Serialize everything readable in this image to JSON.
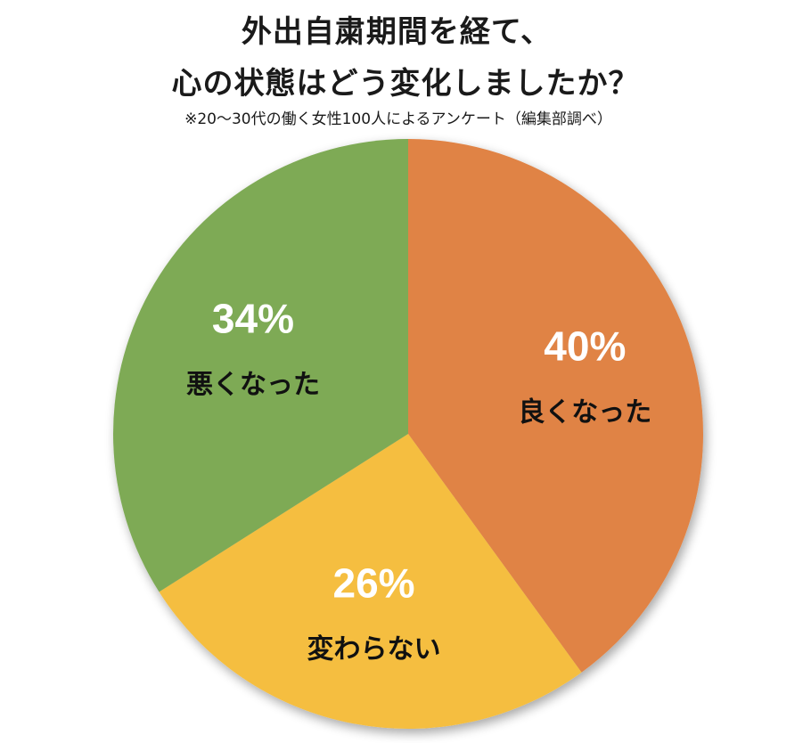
{
  "chart_data": {
    "type": "pie",
    "title": "外出自粛期間を経て、",
    "title_line2": "心の状態はどう変化しましたか？",
    "subtitle": "※20〜30代の働く女性100人によるアンケート（編集部調べ）",
    "slices": [
      {
        "label": "良くなった",
        "value": 40,
        "value_label": "40%",
        "color": "#e08344"
      },
      {
        "label": "変わらない",
        "value": 26,
        "value_label": "26%",
        "color": "#f5be40"
      },
      {
        "label": "悪くなった",
        "value": 34,
        "value_label": "34%",
        "color": "#7eaa55"
      }
    ],
    "start": "12 o'clock",
    "direction": "clockwise"
  }
}
